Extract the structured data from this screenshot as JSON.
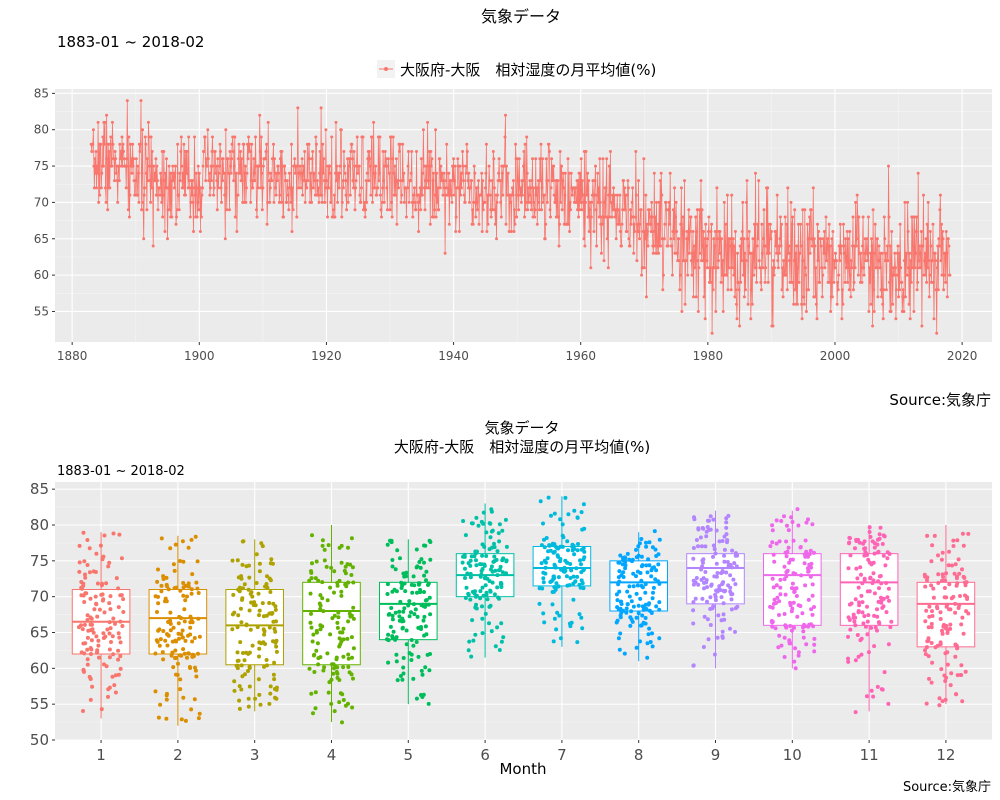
{
  "colors": {
    "panel": "#EBEBEB",
    "grid_major": "#FFFFFF",
    "grid_minor": "#F5F5F5",
    "line": "#F8766D",
    "tick_text": "#4D4D4D",
    "tick_line": "#333333",
    "months": [
      "#F8766D",
      "#DB8E00",
      "#AEA200",
      "#64B200",
      "#00BD5C",
      "#00C1A7",
      "#00BADE",
      "#00A6FF",
      "#B385FF",
      "#EF67EB",
      "#FF63B6",
      "#FF6C91"
    ]
  },
  "chart_data": [
    {
      "type": "line",
      "title": "気象データ",
      "subtitle": "1883-01 ~ 2018-02",
      "legend": "大阪府-大阪　相対湿度の月平均値(%)",
      "legend_position": "top",
      "caption": "Source:気象庁",
      "xlabel": "",
      "ylabel": "",
      "xlim": [
        1877.3,
        2024.7
      ],
      "ylim": [
        50.8,
        85.6
      ],
      "x_ticks": [
        1880,
        1900,
        1920,
        1940,
        1960,
        1980,
        2000,
        2020
      ],
      "y_ticks": [
        55,
        60,
        65,
        70,
        75,
        80,
        85
      ],
      "grid": true,
      "series": [
        {
          "name": "大阪府-大阪　相対湿度の月平均値(%)",
          "x": [
            1883,
            1885,
            1890,
            1895,
            1900,
            1905,
            1910,
            1915,
            1920,
            1925,
            1930,
            1935,
            1940,
            1945,
            1950,
            1955,
            1960,
            1965,
            1970,
            1975,
            1980,
            1985,
            1990,
            1995,
            2000,
            2005,
            2010,
            2015,
            2018
          ],
          "y": [
            75,
            76,
            74,
            73,
            73,
            74,
            74,
            73,
            73,
            73,
            74,
            73,
            73,
            72,
            72,
            72,
            71,
            69,
            67,
            64,
            62,
            63,
            63,
            62,
            63,
            62,
            62,
            63,
            63
          ],
          "spread_sd": [
            2.0,
            3.3,
            3.5,
            3.3,
            3.2,
            3.2,
            3.2,
            3.2,
            3.2,
            3.2,
            3.2,
            3.2,
            3.2,
            3.3,
            3.3,
            3.4,
            3.4,
            3.6,
            4.0,
            4.5,
            4.5,
            4.5,
            4.4,
            4.4,
            4.3,
            4.3,
            4.3,
            4.3,
            4.0
          ],
          "max": 84,
          "min": 52
        }
      ]
    },
    {
      "type": "box",
      "title": "気象データ",
      "subtitle": "大阪府-大阪　相対湿度の月平均値(%)",
      "period": "1883-01 ~ 2018-02",
      "caption": "Source:気象庁",
      "xlabel": "Month",
      "ylabel": "",
      "categories": [
        "1",
        "2",
        "3",
        "4",
        "5",
        "6",
        "7",
        "8",
        "9",
        "10",
        "11",
        "12"
      ],
      "ylim": [
        50,
        86
      ],
      "y_ticks": [
        50,
        55,
        60,
        65,
        70,
        75,
        80,
        85
      ],
      "grid": true,
      "jitter_points": true,
      "boxes": [
        {
          "month": "1",
          "q1": 62,
          "median": 66.5,
          "q3": 71,
          "whisker_low": 53,
          "whisker_high": 79
        },
        {
          "month": "2",
          "q1": 62,
          "median": 67,
          "q3": 71,
          "whisker_low": 52,
          "whisker_high": 78.5
        },
        {
          "month": "3",
          "q1": 60.5,
          "median": 66,
          "q3": 71,
          "whisker_low": 54,
          "whisker_high": 78
        },
        {
          "month": "4",
          "q1": 60.5,
          "median": 68,
          "q3": 72,
          "whisker_low": 52.5,
          "whisker_high": 80
        },
        {
          "month": "5",
          "q1": 64,
          "median": 69,
          "q3": 72,
          "whisker_low": 55,
          "whisker_high": 78
        },
        {
          "month": "6",
          "q1": 70,
          "median": 73,
          "q3": 76,
          "whisker_low": 61.5,
          "whisker_high": 83
        },
        {
          "month": "7",
          "q1": 71.5,
          "median": 74,
          "q3": 77,
          "whisker_low": 63,
          "whisker_high": 84
        },
        {
          "month": "8",
          "q1": 68,
          "median": 72,
          "q3": 75,
          "whisker_low": 61,
          "whisker_high": 79
        },
        {
          "month": "9",
          "q1": 69,
          "median": 74,
          "q3": 76,
          "whisker_low": 60,
          "whisker_high": 82
        },
        {
          "month": "10",
          "q1": 66,
          "median": 73,
          "q3": 76,
          "whisker_low": 60,
          "whisker_high": 82
        },
        {
          "month": "11",
          "q1": 66,
          "median": 72,
          "q3": 76,
          "whisker_low": 54,
          "whisker_high": 80
        },
        {
          "month": "12",
          "q1": 63,
          "median": 69,
          "q3": 72,
          "whisker_low": 55,
          "whisker_high": 80
        }
      ]
    }
  ]
}
